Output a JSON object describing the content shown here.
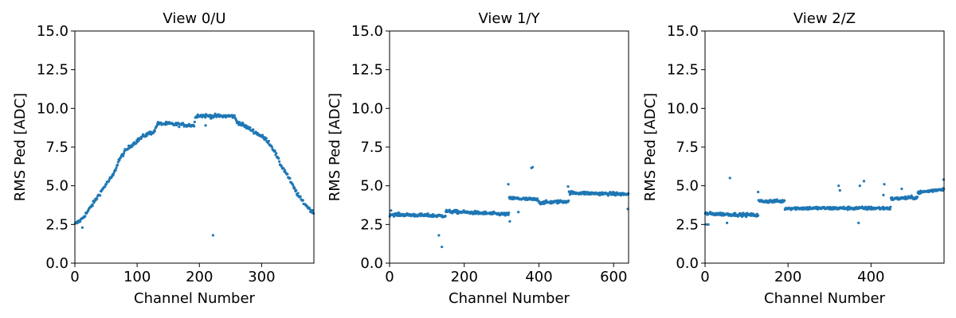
{
  "chart_data": [
    {
      "type": "scatter",
      "title": "View 0/U",
      "xlabel": "Channel Number",
      "ylabel": "RMS Ped [ADC]",
      "xlim": [
        0,
        384
      ],
      "ylim": [
        0,
        15
      ],
      "xticks": [
        "0",
        "100",
        "200",
        "300"
      ],
      "yticks": [
        "0.0",
        "2.5",
        "5.0",
        "7.5",
        "10.0",
        "12.5",
        "15.0"
      ],
      "grid": false,
      "color": "#1f77b4",
      "shape": {
        "kind": "dome",
        "points": [
          [
            0,
            2.5
          ],
          [
            10,
            2.8
          ],
          [
            20,
            3.3
          ],
          [
            30,
            3.9
          ],
          [
            40,
            4.5
          ],
          [
            50,
            5.1
          ],
          [
            60,
            5.6
          ],
          [
            64,
            5.9
          ],
          [
            70,
            6.6
          ],
          [
            80,
            7.2
          ],
          [
            90,
            7.6
          ],
          [
            100,
            7.9
          ],
          [
            110,
            8.2
          ],
          [
            120,
            8.4
          ],
          [
            128,
            8.5
          ],
          [
            132,
            9.0
          ],
          [
            150,
            9.0
          ],
          [
            170,
            8.95
          ],
          [
            192,
            8.9
          ],
          [
            194,
            9.55
          ],
          [
            220,
            9.5
          ],
          [
            250,
            9.5
          ],
          [
            256,
            9.5
          ],
          [
            260,
            9.15
          ],
          [
            280,
            8.7
          ],
          [
            300,
            8.2
          ],
          [
            310,
            7.9
          ],
          [
            320,
            7.3
          ],
          [
            330,
            6.4
          ],
          [
            340,
            5.8
          ],
          [
            350,
            5.0
          ],
          [
            360,
            4.3
          ],
          [
            370,
            3.8
          ],
          [
            384,
            3.2
          ]
        ]
      },
      "noise": 0.12,
      "n_points": 384,
      "outliers": [
        [
          12,
          2.3
        ],
        [
          222,
          1.8
        ],
        [
          210,
          8.9
        ]
      ]
    },
    {
      "type": "scatter",
      "title": "View 1/Y",
      "xlabel": "Channel Number",
      "ylabel": "RMS Ped [ADC]",
      "xlim": [
        0,
        640
      ],
      "ylim": [
        0,
        15
      ],
      "xticks": [
        "0",
        "200",
        "400",
        "600"
      ],
      "yticks": [
        "0.0",
        "2.5",
        "5.0",
        "7.5",
        "10.0",
        "12.5",
        "15.0"
      ],
      "grid": false,
      "color": "#1f77b4",
      "segments": [
        {
          "from": 0,
          "to": 150,
          "y0": 3.15,
          "y1": 3.05
        },
        {
          "from": 150,
          "to": 320,
          "y0": 3.35,
          "y1": 3.15
        },
        {
          "from": 320,
          "to": 400,
          "y0": 4.2,
          "y1": 4.1
        },
        {
          "from": 400,
          "to": 480,
          "y0": 3.9,
          "y1": 4.0
        },
        {
          "from": 480,
          "to": 640,
          "y0": 4.55,
          "y1": 4.45
        }
      ],
      "noise": 0.1,
      "n_points": 520,
      "outliers": [
        [
          132,
          1.8
        ],
        [
          140,
          1.05
        ],
        [
          380,
          6.15
        ],
        [
          383,
          6.2
        ],
        [
          318,
          5.1
        ],
        [
          322,
          2.7
        ],
        [
          478,
          4.95
        ],
        [
          345,
          3.3
        ],
        [
          638,
          3.5
        ],
        [
          4,
          3.4
        ]
      ]
    },
    {
      "type": "scatter",
      "title": "View 2/Z",
      "xlabel": "Channel Number",
      "ylabel": "RMS Ped [ADC]",
      "xlim": [
        0,
        576
      ],
      "ylim": [
        0,
        15
      ],
      "xticks": [
        "0",
        "200",
        "400"
      ],
      "yticks": [
        "0.0",
        "2.5",
        "5.0",
        "7.5",
        "10.0",
        "12.5",
        "15.0"
      ],
      "grid": false,
      "color": "#1f77b4",
      "segments": [
        {
          "from": 0,
          "to": 128,
          "y0": 3.2,
          "y1": 3.1
        },
        {
          "from": 128,
          "to": 192,
          "y0": 4.0,
          "y1": 4.0
        },
        {
          "from": 192,
          "to": 448,
          "y0": 3.55,
          "y1": 3.55
        },
        {
          "from": 448,
          "to": 512,
          "y0": 4.15,
          "y1": 4.25
        },
        {
          "from": 512,
          "to": 576,
          "y0": 4.55,
          "y1": 4.8
        }
      ],
      "noise": 0.1,
      "n_points": 480,
      "outliers": [
        [
          3,
          2.5
        ],
        [
          8,
          2.5
        ],
        [
          60,
          5.5
        ],
        [
          53,
          2.6
        ],
        [
          128,
          4.6
        ],
        [
          322,
          5.0
        ],
        [
          325,
          4.7
        ],
        [
          373,
          5.0
        ],
        [
          383,
          5.3
        ],
        [
          370,
          2.6
        ],
        [
          432,
          5.1
        ],
        [
          430,
          4.4
        ],
        [
          474,
          4.8
        ],
        [
          575,
          5.4
        ]
      ]
    }
  ]
}
